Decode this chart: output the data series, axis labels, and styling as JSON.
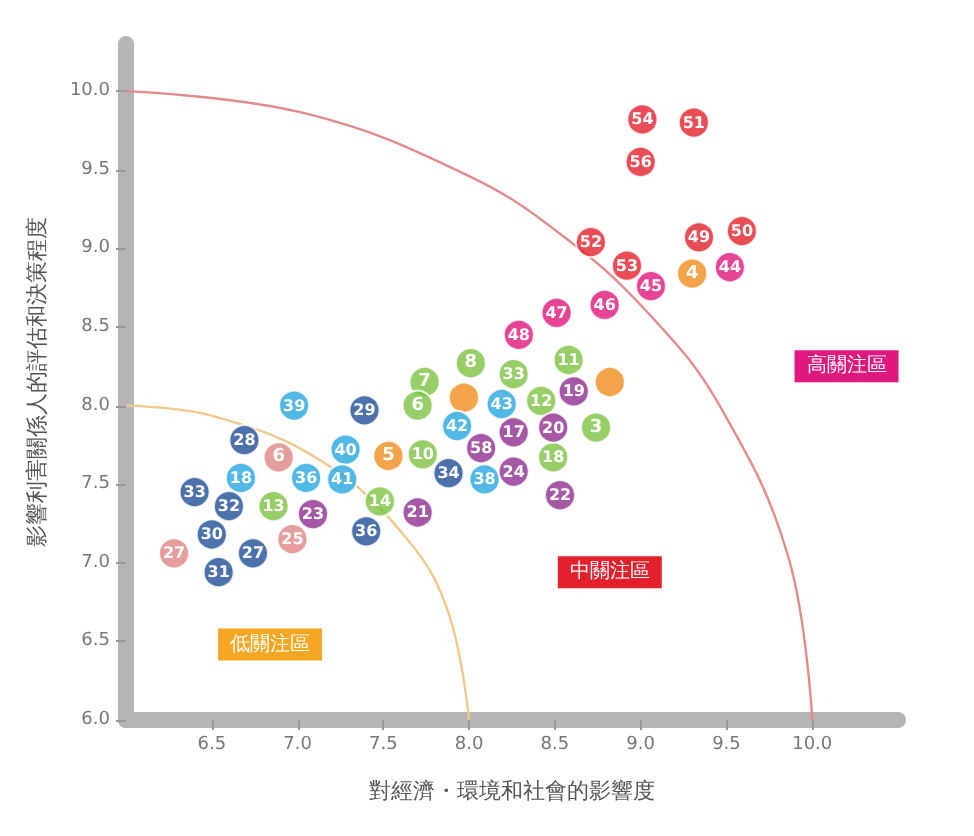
{
  "chart_data": {
    "type": "scatter",
    "xlabel": "對經濟・環境和社會的影響度",
    "ylabel": "影響利害關係人的評估和決策程度",
    "xlim": [
      6,
      10.5
    ],
    "ylim": [
      6,
      10.3
    ],
    "xticks": [
      6.5,
      {
        "value": 7,
        "label": "7.0"
      },
      7.5,
      {
        "value": 8,
        "label": "8.0"
      },
      8.5,
      {
        "value": 9,
        "label": "9.0"
      },
      9.5,
      {
        "value": 10,
        "label": "10.0"
      }
    ],
    "yticks": [
      {
        "value": 6,
        "label": "6.0"
      },
      6.5,
      {
        "value": 7,
        "label": "7.0"
      },
      7.5,
      {
        "value": 8,
        "label": "8.0"
      },
      8.5,
      {
        "value": 9,
        "label": "9.0"
      },
      9.5,
      {
        "value": 10,
        "label": "10.0"
      }
    ],
    "marker": "circle",
    "grid": false,
    "annotations": [
      "低關注區",
      "中關注區",
      "高關注區",
      {
        "text": "8",
        "x": 8.01,
        "y": 8.27
      },
      {
        "text": "33",
        "x": 8.26,
        "y": 8.2
      },
      {
        "text": "11",
        "x": 8.58,
        "y": 8.29
      },
      {
        "text": "7",
        "x": 7.74,
        "y": 8.15
      },
      {
        "text": "6",
        "x": 7.7,
        "y": 8
      },
      {
        "text": "12",
        "x": 8.42,
        "y": 8.03
      },
      {
        "text": "3",
        "x": 8.74,
        "y": 7.86
      },
      {
        "text": "10",
        "x": 7.73,
        "y": 7.69
      },
      {
        "text": "14",
        "x": 7.48,
        "y": 7.39
      },
      {
        "text": "18",
        "x": 8.49,
        "y": 7.67
      },
      {
        "text": "13",
        "x": 6.86,
        "y": 7.36
      },
      {
        "text": "4",
        "x": 9.3,
        "y": 8.84
      },
      {
        "text": "5",
        "x": 7.53,
        "y": 7.68
      },
      {
        "text": "39",
        "x": 6.98,
        "y": 8
      },
      {
        "text": "40",
        "x": 7.28,
        "y": 7.72
      },
      {
        "text": "18",
        "x": 6.67,
        "y": 7.54
      },
      {
        "text": "36",
        "x": 7.05,
        "y": 7.54
      },
      {
        "text": "41",
        "x": 7.26,
        "y": 7.53
      },
      {
        "text": "43",
        "x": 8.19,
        "y": 8.01
      },
      {
        "text": "42",
        "x": 7.93,
        "y": 7.87
      },
      {
        "text": "38",
        "x": 8.09,
        "y": 7.53
      },
      {
        "text": "28",
        "x": 6.69,
        "y": 7.78
      },
      {
        "text": "29",
        "x": 7.39,
        "y": 7.97
      },
      {
        "text": "33",
        "x": 6.4,
        "y": 7.45
      },
      {
        "text": "32",
        "x": 6.6,
        "y": 7.36
      },
      {
        "text": "30",
        "x": 6.5,
        "y": 7.18
      },
      {
        "text": "27",
        "x": 6.74,
        "y": 7.06
      },
      {
        "text": "31",
        "x": 6.54,
        "y": 6.94
      },
      {
        "text": "36",
        "x": 7.4,
        "y": 7.2
      },
      {
        "text": "34",
        "x": 7.88,
        "y": 7.57
      },
      {
        "text": "19",
        "x": 8.61,
        "y": 8.09
      },
      {
        "text": "17",
        "x": 8.26,
        "y": 7.83
      },
      {
        "text": "20",
        "x": 8.49,
        "y": 7.86
      },
      {
        "text": "58",
        "x": 8.07,
        "y": 7.73
      },
      {
        "text": "24",
        "x": 8.26,
        "y": 7.58
      },
      {
        "text": "22",
        "x": 8.53,
        "y": 7.43
      },
      {
        "text": "23",
        "x": 7.09,
        "y": 7.31
      },
      {
        "text": "21",
        "x": 7.7,
        "y": 7.32
      },
      {
        "text": "6",
        "x": 6.89,
        "y": 7.67
      },
      {
        "text": "25",
        "x": 6.97,
        "y": 7.15
      },
      {
        "text": "27",
        "x": 6.28,
        "y": 7.06
      },
      {
        "text": "48",
        "x": 8.29,
        "y": 8.45
      },
      {
        "text": "47",
        "x": 8.51,
        "y": 8.59
      },
      {
        "text": "46",
        "x": 8.79,
        "y": 8.64
      },
      {
        "text": "45",
        "x": 9.06,
        "y": 8.76
      },
      {
        "text": "44",
        "x": 9.52,
        "y": 8.88
      },
      {
        "text": "54",
        "x": 9.01,
        "y": 9.82
      },
      {
        "text": "51",
        "x": 9.31,
        "y": 9.8
      },
      {
        "text": "56",
        "x": 9,
        "y": 9.55
      },
      {
        "text": "52",
        "x": 8.71,
        "y": 9.04
      },
      {
        "text": "49",
        "x": 9.34,
        "y": 9.07
      },
      {
        "text": "50",
        "x": 9.59,
        "y": 9.11
      },
      {
        "text": "53",
        "x": 8.92,
        "y": 8.89
      }
    ],
    "series": [
      {
        "type": "line",
        "marker": "none",
        "color": "#f2c98a",
        "x": [
          6,
          6.52,
          7.15,
          7.64,
          7.88,
          8
        ],
        "values": [
          8,
          7.93,
          7.64,
          7.15,
          6.68,
          6
        ]
      },
      {
        "type": "line",
        "marker": "none",
        "color": "#e58a8a",
        "x": [
          6,
          7.04,
          8,
          8.57,
          9.06,
          9.46,
          9.86,
          10
        ],
        "values": [
          10,
          9.86,
          9.46,
          9.06,
          8.57,
          8,
          7.04,
          6
        ]
      },
      {
        "color": "#7dc242",
        "x": [
          8.01,
          8.26,
          8.58,
          7.74,
          7.7,
          8.42,
          8.74,
          7.73,
          7.48,
          8.49,
          6.86
        ],
        "values": [
          8.27,
          8.2,
          8.29,
          8.15,
          8,
          8.03,
          7.86,
          7.69,
          7.39,
          7.67,
          7.36
        ]
      },
      {
        "color": "#f08c1c",
        "x": [
          7.97,
          8.82,
          9.3,
          7.53
        ],
        "values": [
          8.05,
          8.15,
          8.84,
          7.68
        ]
      },
      {
        "color": "#27a8e0",
        "x": [
          6.98,
          7.28,
          6.67,
          7.05,
          7.26,
          8.19,
          7.93,
          8.09
        ],
        "values": [
          8,
          7.72,
          7.54,
          7.54,
          7.53,
          8.01,
          7.87,
          7.53
        ]
      },
      {
        "color": "#1f4e96",
        "x": [
          6.69,
          7.39,
          6.4,
          6.6,
          6.5,
          6.74,
          6.54,
          7.4,
          7.88
        ],
        "values": [
          7.78,
          7.97,
          7.45,
          7.36,
          7.18,
          7.06,
          6.94,
          7.2,
          7.57
        ]
      },
      {
        "color": "#8e2e8f",
        "x": [
          8.61,
          8.26,
          8.49,
          8.07,
          8.26,
          8.53,
          7.09,
          7.7
        ],
        "values": [
          8.09,
          7.83,
          7.86,
          7.73,
          7.58,
          7.43,
          7.31,
          7.32
        ]
      },
      {
        "color": "#e08484",
        "x": [
          6.89,
          6.97,
          6.28
        ],
        "values": [
          7.67,
          7.15,
          7.06
        ]
      },
      {
        "color": "#e0177c",
        "x": [
          8.29,
          8.51,
          8.79,
          9.06,
          9.52
        ],
        "values": [
          8.45,
          8.59,
          8.64,
          8.76,
          8.88
        ]
      },
      {
        "color": "#e3202c",
        "x": [
          9.01,
          9.31,
          9,
          8.71,
          9.34,
          9.59,
          8.92
        ],
        "values": [
          9.82,
          9.8,
          9.55,
          9.04,
          9.07,
          9.11,
          8.89
        ]
      }
    ]
  }
}
